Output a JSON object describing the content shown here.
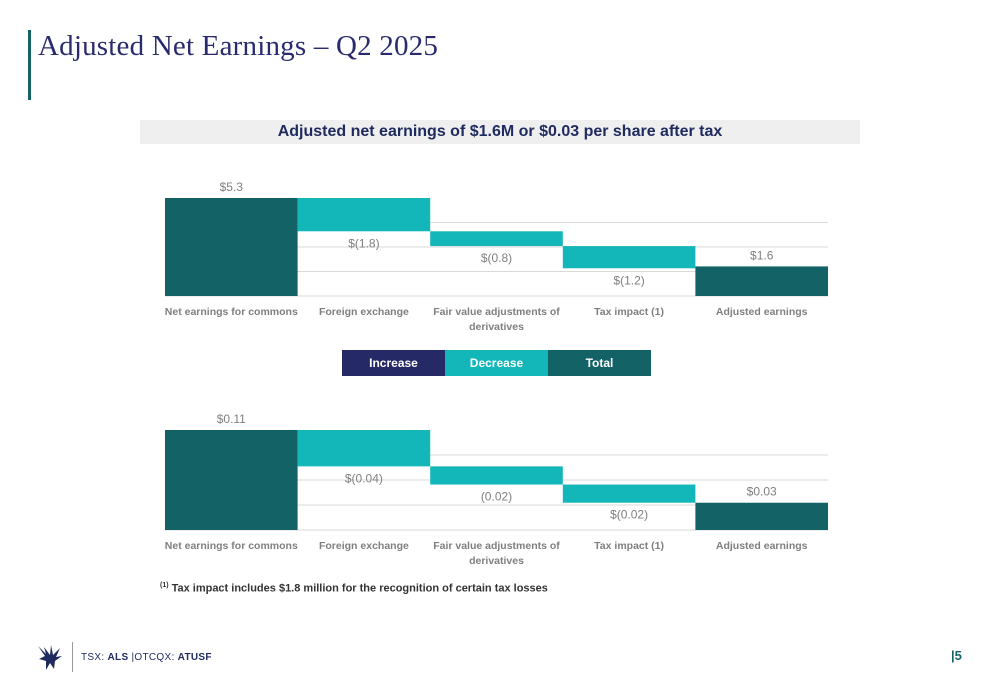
{
  "page": {
    "title": "Adjusted Net Earnings – Q2 2025",
    "banner": "Adjusted net earnings of $1.6M or $0.03 per share after tax",
    "footnote_marker": "(1)",
    "footnote": "Tax impact includes $1.8 million for the recognition of certain tax losses",
    "footer_prefix": "TSX:",
    "footer_tsx": "ALS",
    "footer_sep": "|OTCQX:",
    "footer_otc": "ATUSF",
    "page_number": "|5"
  },
  "legend": {
    "items": [
      {
        "label": "Increase",
        "color": "#252a66"
      },
      {
        "label": "Decrease",
        "color": "#14b7b9"
      },
      {
        "label": "Total",
        "color": "#136266"
      }
    ]
  },
  "colors": {
    "increase": "#252a66",
    "decrease": "#14b7b9",
    "total": "#136266",
    "grid": "#d9d9d9",
    "label": "#7f7f7f"
  },
  "chart_data": [
    {
      "type": "bar",
      "subtype": "waterfall",
      "categories": [
        "Net earnings for commons",
        "Foreign exchange",
        "Fair value adjustments of derivatives",
        "Tax impact (1)",
        "Adjusted earnings"
      ],
      "values": [
        5.3,
        -1.8,
        -0.8,
        -1.2,
        1.6
      ],
      "kinds": [
        "total",
        "decrease",
        "decrease",
        "decrease",
        "total"
      ],
      "data_labels": [
        "$5.3",
        "$(1.8)",
        "$(0.8)",
        "$(1.2)",
        "$1.6"
      ],
      "ylim": [
        0,
        5.3
      ],
      "grid": true,
      "legend": "bottom-center"
    },
    {
      "type": "bar",
      "subtype": "waterfall",
      "categories": [
        "Net earnings for commons",
        "Foreign exchange",
        "Fair value adjustments of derivatives",
        "Tax impact (1)",
        "Adjusted earnings"
      ],
      "values": [
        0.11,
        -0.04,
        -0.02,
        -0.02,
        0.03
      ],
      "kinds": [
        "total",
        "decrease",
        "decrease",
        "decrease",
        "total"
      ],
      "data_labels": [
        "$0.11",
        "$(0.04)",
        "(0.02)",
        "$(0.02)",
        "$0.03"
      ],
      "ylim": [
        0,
        0.11
      ],
      "grid": true
    }
  ]
}
